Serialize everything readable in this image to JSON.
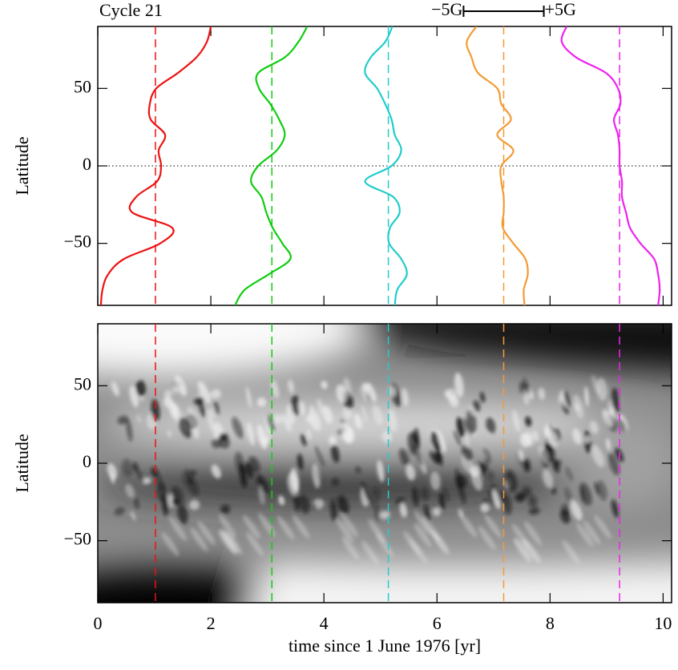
{
  "chart_data": [
    {
      "type": "line",
      "title": "Cycle 21",
      "ylabel": "Latitude",
      "xlim": [
        0,
        10.15
      ],
      "ylim": [
        -90,
        90
      ],
      "yticks": [
        {
          "value": -50,
          "label": "−50"
        },
        0,
        50
      ],
      "latitudes": [
        90,
        80,
        70,
        60,
        50,
        40,
        30,
        20,
        10,
        0,
        -10,
        -20,
        -30,
        -40,
        -50,
        -60,
        -70,
        -80,
        -90
      ],
      "scale_bar": {
        "field": [
          -5,
          5
        ],
        "labels": [
          "−5G",
          "+5G"
        ],
        "time": [
          6.47,
          7.89
        ]
      },
      "series": [
        {
          "color": "#ee1111",
          "time": 1.02,
          "values": [
            6.9,
            6.4,
            5.1,
            2.8,
            0.1,
            -0.7,
            -0.6,
            1.2,
            0.4,
            0.7,
            0.2,
            -2.4,
            -2.9,
            2.1,
            0.6,
            -3.9,
            -5.9,
            -6.6,
            -6.8
          ]
        },
        {
          "color": "#11cc11",
          "time": 3.08,
          "values": [
            4.4,
            3.3,
            1.6,
            -1.7,
            -1.6,
            -0.2,
            0.9,
            1.6,
            0.6,
            -1.7,
            -2.6,
            -1.3,
            -0.7,
            0.1,
            1.3,
            2.3,
            -0.4,
            -3.4,
            -4.6
          ]
        },
        {
          "color": "#22cccc",
          "time": 5.14,
          "values": [
            0.5,
            -0.4,
            -2.2,
            -2.9,
            -1.4,
            -0.4,
            0.4,
            0.8,
            1.6,
            0.4,
            -2.9,
            0.6,
            1.4,
            0.2,
            0.1,
            1.6,
            2.3,
            1.1,
            0.8
          ]
        },
        {
          "color": "#f39b35",
          "time": 7.18,
          "values": [
            -3.4,
            -4.6,
            -4.0,
            -3.2,
            -0.8,
            -0.3,
            0.9,
            -0.8,
            1.2,
            -0.3,
            -0.3,
            0,
            0,
            -0.1,
            1.2,
            2.7,
            3.0,
            2.5,
            2.6
          ]
        },
        {
          "color": "#ee22ee",
          "time": 9.23,
          "values": [
            -6.6,
            -7.2,
            -5.4,
            -1.7,
            -0.2,
            0.1,
            -0.7,
            -0.2,
            0,
            0,
            0.3,
            0.3,
            0.8,
            1.3,
            2.6,
            4.3,
            4.8,
            5.0,
            4.8
          ]
        }
      ]
    },
    {
      "type": "heatmap",
      "ylabel": "Latitude",
      "xlabel": "time since 1 June 1976 [yr]",
      "xlim": [
        0,
        10.15
      ],
      "ylim": [
        -90,
        90
      ],
      "xticks": [
        0,
        2,
        4,
        6,
        8,
        10
      ],
      "yticks": [
        {
          "value": -50,
          "label": "−50"
        },
        0,
        50
      ]
    }
  ]
}
